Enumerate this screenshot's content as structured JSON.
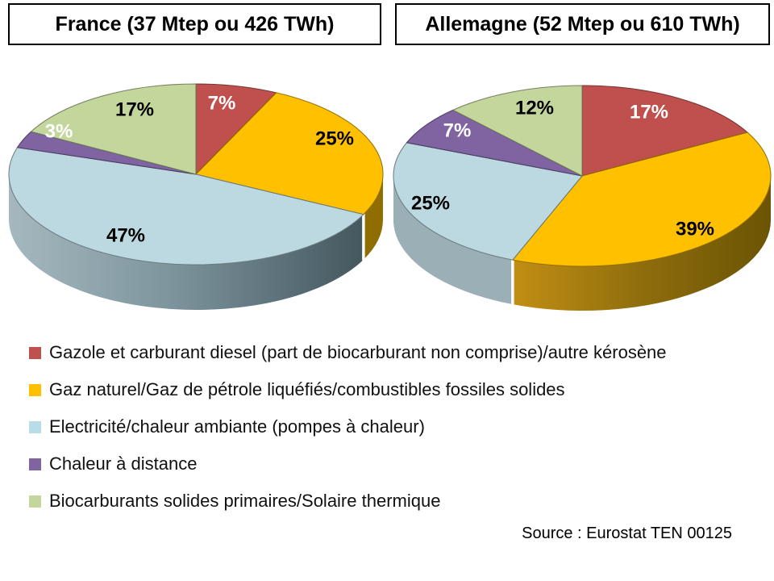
{
  "chart_data": [
    {
      "type": "pie",
      "style": "3d",
      "title": "France (37 Mtep ou 426 TWh)",
      "categories": [
        "Gazole et carburant diesel (part de biocarburant non comprise)/autre kérosène",
        "Gaz naturel/Gaz de pétrole liquéfiés/combustibles fossiles solides",
        "Electricité/chaleur ambiante (pompes à chaleur)",
        "Chaleur à distance",
        "Biocarburants solides primaires/Solaire thermique"
      ],
      "values": [
        7,
        25,
        47,
        3,
        17
      ],
      "value_labels": [
        "7%",
        "25%",
        "47%",
        "3%",
        "17%"
      ],
      "colors": [
        "#C0504D",
        "#FFC000",
        "#BCD9E2",
        "#8064A2",
        "#C3D69B"
      ],
      "label_colors": [
        "#FFFFFF",
        "#000000",
        "#000000",
        "#FFFFFF",
        "#000000"
      ],
      "legend_position": "bottom-shared",
      "start_angle_deg": 0,
      "direction": "clockwise"
    },
    {
      "type": "pie",
      "style": "3d",
      "title": "Allemagne (52 Mtep ou 610 TWh)",
      "categories": [
        "Gazole et carburant diesel (part de biocarburant non comprise)/autre kérosène",
        "Gaz naturel/Gaz de pétrole liquéfiés/combustibles fossiles solides",
        "Electricité/chaleur ambiante (pompes à chaleur)",
        "Chaleur à distance",
        "Biocarburants solides primaires/Solaire thermique"
      ],
      "values": [
        17,
        39,
        25,
        7,
        12
      ],
      "value_labels": [
        "17%",
        "39%",
        "25%",
        "7%",
        "12%"
      ],
      "colors": [
        "#C0504D",
        "#FFC000",
        "#BCD9E2",
        "#8064A2",
        "#C3D69B"
      ],
      "label_colors": [
        "#FFFFFF",
        "#000000",
        "#000000",
        "#FFFFFF",
        "#000000"
      ],
      "legend_position": "bottom-shared",
      "start_angle_deg": 0,
      "direction": "clockwise"
    }
  ],
  "legend": {
    "items": [
      {
        "label": "Gazole et carburant diesel (part de biocarburant non comprise)/autre kérosène",
        "color": "#C0504D"
      },
      {
        "label": "Gaz naturel/Gaz de pétrole liquéfiés/combustibles fossiles solides",
        "color": "#FFC000"
      },
      {
        "label": "Electricité/chaleur ambiante (pompes à chaleur)",
        "color": "#B7DEE8"
      },
      {
        "label": "Chaleur à distance",
        "color": "#8064A2"
      },
      {
        "label": "Biocarburants solides primaires/Solaire thermique",
        "color": "#C3D69B"
      }
    ]
  },
  "source": {
    "text": "Source : Eurostat TEN 00125"
  }
}
